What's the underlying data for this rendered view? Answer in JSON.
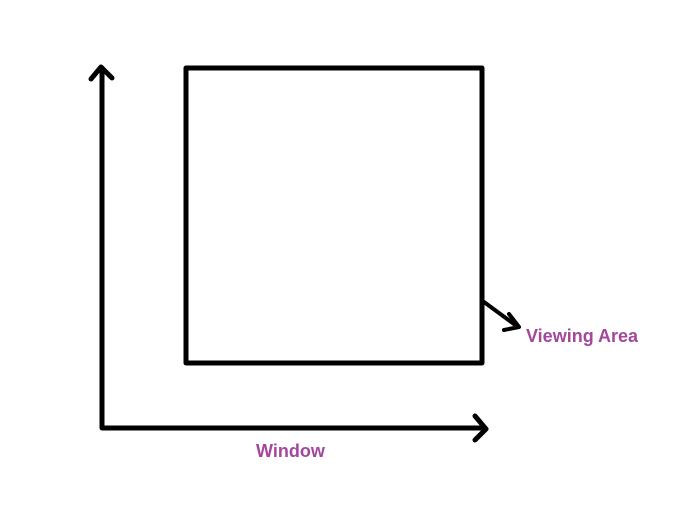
{
  "labels": {
    "viewing_area": "Viewing Area",
    "window": "Window"
  },
  "colors": {
    "stroke": "#000000",
    "label": "#a3479c",
    "background": "#ffffff"
  }
}
